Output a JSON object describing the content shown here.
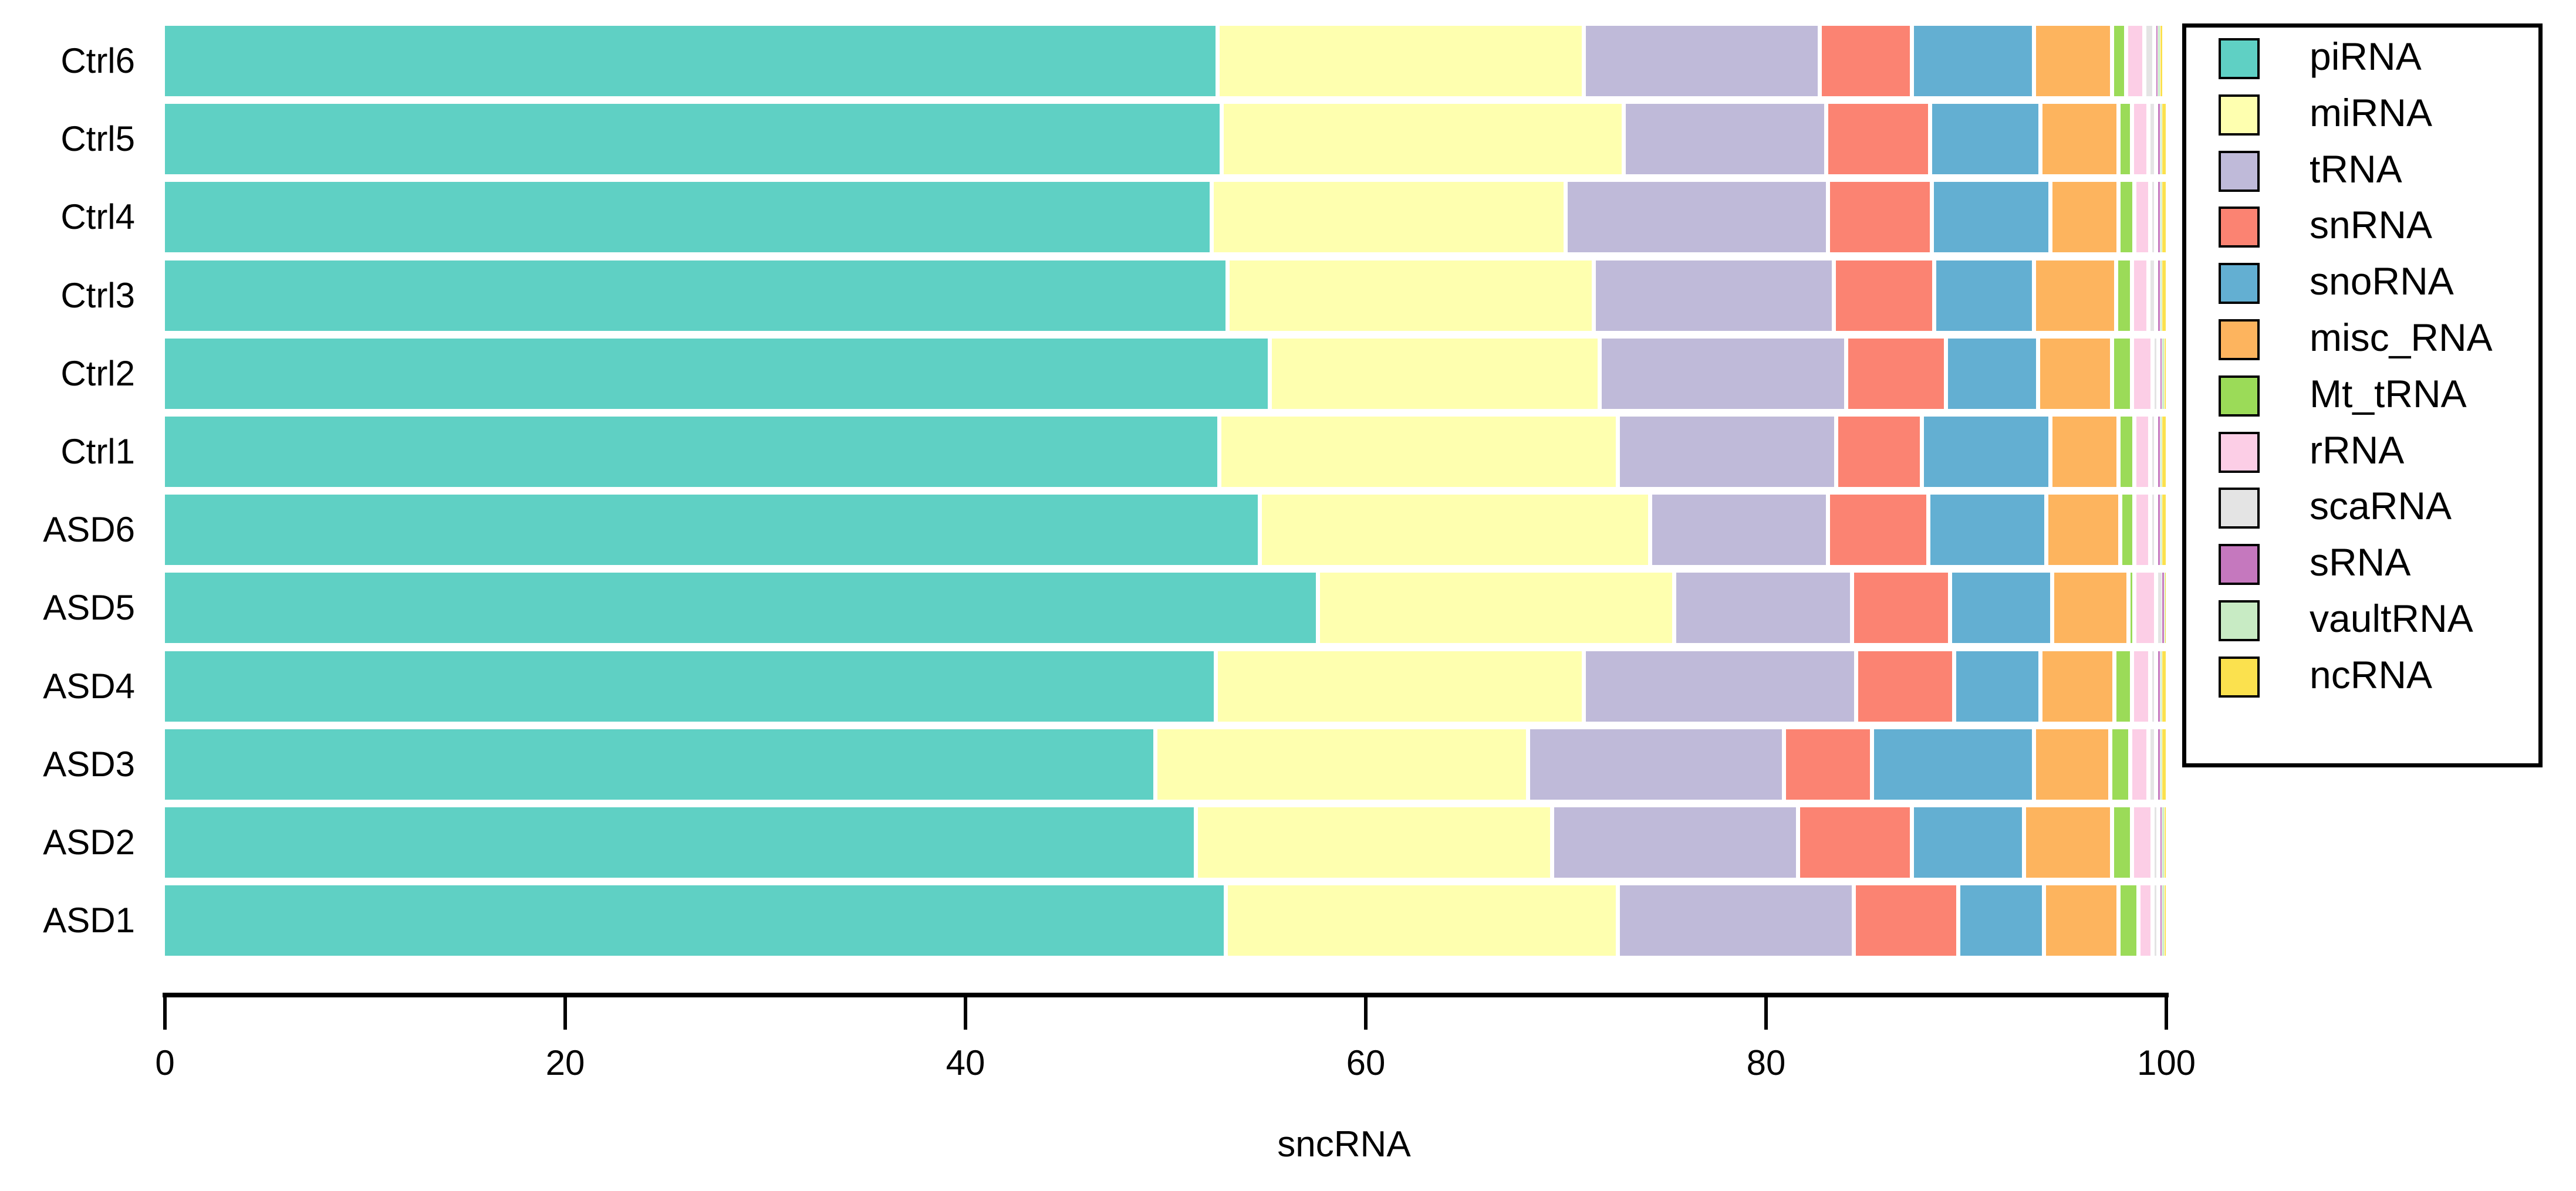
{
  "figure": {
    "xlabel": "sncRNA"
  },
  "chart_data": {
    "type": "bar",
    "orientation": "horizontal_stacked",
    "categories": [
      "Ctrl6",
      "Ctrl5",
      "Ctrl4",
      "Ctrl3",
      "Ctrl2",
      "Ctrl1",
      "ASD6",
      "ASD5",
      "ASD4",
      "ASD3",
      "ASD2",
      "ASD1"
    ],
    "series": [
      {
        "name": "piRNA",
        "color": "#5FD0C4",
        "values": [
          52.7,
          52.9,
          52.4,
          53.2,
          55.3,
          52.8,
          54.8,
          57.7,
          52.6,
          49.6,
          51.6,
          53.1
        ]
      },
      {
        "name": "miRNA",
        "color": "#FEFFAF",
        "values": [
          18.3,
          20.1,
          17.7,
          18.3,
          16.5,
          19.9,
          19.5,
          17.8,
          18.4,
          18.6,
          17.8,
          19.6
        ]
      },
      {
        "name": "tRNA",
        "color": "#BFBAD9",
        "values": [
          11.8,
          10.1,
          13.1,
          12.0,
          12.3,
          10.9,
          8.9,
          8.9,
          13.6,
          12.8,
          12.3,
          11.8
        ]
      },
      {
        "name": "snRNA",
        "color": "#FB8372",
        "values": [
          4.6,
          5.2,
          5.2,
          5.0,
          5.0,
          4.3,
          5.0,
          4.9,
          4.9,
          4.4,
          5.7,
          5.2
        ]
      },
      {
        "name": "snoRNA",
        "color": "#63AFD2",
        "values": [
          6.1,
          5.5,
          5.9,
          5.0,
          4.6,
          6.4,
          5.9,
          5.1,
          4.3,
          8.1,
          5.6,
          4.3
        ]
      },
      {
        "name": "misc_RNA",
        "color": "#FDB45E",
        "values": [
          3.9,
          3.9,
          3.4,
          4.1,
          3.7,
          3.4,
          3.7,
          3.8,
          3.7,
          3.8,
          4.4,
          3.7
        ]
      },
      {
        "name": "Mt_tRNA",
        "color": "#9BDB58",
        "values": [
          0.7,
          0.7,
          0.8,
          0.8,
          1.0,
          0.8,
          0.7,
          0.3,
          0.9,
          1.0,
          1.0,
          1.0
        ]
      },
      {
        "name": "rRNA",
        "color": "#FCCEE6",
        "values": [
          0.9,
          0.8,
          0.8,
          0.8,
          1.0,
          0.8,
          0.8,
          1.1,
          0.9,
          0.9,
          1.0,
          0.7
        ]
      },
      {
        "name": "scaRNA",
        "color": "#E4E4E4",
        "values": [
          0.5,
          0.4,
          0.3,
          0.4,
          0.3,
          0.3,
          0.3,
          0.2,
          0.3,
          0.4,
          0.3,
          0.3
        ]
      },
      {
        "name": "sRNA",
        "color": "#C578BE",
        "values": [
          0.1,
          0.1,
          0.1,
          0.1,
          0.1,
          0.1,
          0.1,
          0.1,
          0.1,
          0.1,
          0.1,
          0.1
        ]
      },
      {
        "name": "vaultRNA",
        "color": "#C8EBC4",
        "values": [
          0.1,
          0.1,
          0.1,
          0.1,
          0.1,
          0.1,
          0.1,
          0.05,
          0.1,
          0.1,
          0.1,
          0.1
        ]
      },
      {
        "name": "ncRNA",
        "color": "#FBE14E",
        "values": [
          0.3,
          0.2,
          0.2,
          0.2,
          0.1,
          0.2,
          0.2,
          0.05,
          0.2,
          0.2,
          0.1,
          0.1
        ]
      }
    ],
    "x_ticks": [
      "0",
      "20",
      "40",
      "60",
      "80",
      "100"
    ],
    "xlim": [
      0,
      100
    ],
    "xlabel": "sncRNA",
    "grid": false,
    "legend_position": "right",
    "legend_labels": [
      "piRNA",
      "miRNA",
      "tRNA",
      "snRNA",
      "snoRNA",
      "misc_RNA",
      "Mt_tRNA",
      "rRNA",
      "scaRNA",
      "sRNA",
      "vaultRNA",
      "ncRNA"
    ]
  }
}
